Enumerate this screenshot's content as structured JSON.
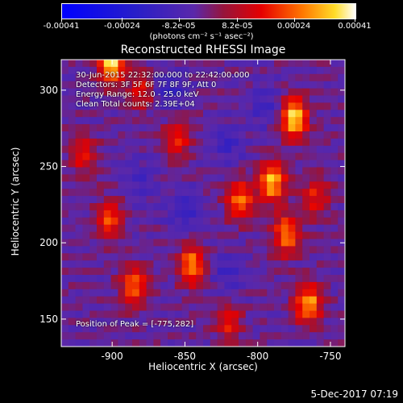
{
  "chart_data": {
    "type": "heatmap",
    "title": "Reconstructed RHESSI Image",
    "xlabel": "Heliocentric X (arcsec)",
    "ylabel": "Heliocentric Y (arcsec)",
    "xlim": [
      -935,
      -740
    ],
    "ylim": [
      132,
      320
    ],
    "x_ticks": [
      -900,
      -850,
      -800,
      -750
    ],
    "y_ticks": [
      150,
      200,
      250,
      300
    ],
    "colorbar": {
      "ticks": [
        "-0.00041",
        "-0.00024",
        "-8.2e-05",
        "8.2e-05",
        "0.00024",
        "0.00041"
      ],
      "units": "(photons cm⁻² s⁻¹ asec⁻²)",
      "range": [
        -0.00041,
        0.00041
      ]
    },
    "annotations": [
      "30-Jun-2015 22:32:00.000 to 22:42:00.000",
      "Detectors: 3F 5F 6F 7F 8F 9F, Att 0",
      "Energy Range: 12.0 - 25.0 keV",
      "Clean    Total counts: 2.39E+04"
    ],
    "peak_label": "Position of Peak = [-775,282]",
    "peak_position": [
      -775,
      282
    ],
    "hot_spots": [
      {
        "x": -900,
        "y": 318,
        "value": 0.00041
      },
      {
        "x": -775,
        "y": 282,
        "value": 0.00041
      },
      {
        "x": -790,
        "y": 240,
        "value": 0.00036
      },
      {
        "x": -812,
        "y": 228,
        "value": 0.00028
      },
      {
        "x": -780,
        "y": 205,
        "value": 0.0003
      },
      {
        "x": -765,
        "y": 160,
        "value": 0.00033
      },
      {
        "x": -845,
        "y": 185,
        "value": 0.0003
      },
      {
        "x": -885,
        "y": 172,
        "value": 0.00027
      },
      {
        "x": -902,
        "y": 215,
        "value": 0.00025
      },
      {
        "x": -920,
        "y": 258,
        "value": 0.00018
      },
      {
        "x": -855,
        "y": 268,
        "value": 0.0002
      },
      {
        "x": -880,
        "y": 300,
        "value": 0.00018
      },
      {
        "x": -820,
        "y": 148,
        "value": 0.00018
      },
      {
        "x": -760,
        "y": 230,
        "value": 0.0002
      }
    ],
    "cold_spots": [
      {
        "x": -860,
        "y": 300,
        "value": -0.00012
      },
      {
        "x": -795,
        "y": 290,
        "value": -0.0001
      },
      {
        "x": -820,
        "y": 265,
        "value": -9e-05
      },
      {
        "x": -850,
        "y": 220,
        "value": -0.00011
      },
      {
        "x": -880,
        "y": 240,
        "value": -8e-05
      },
      {
        "x": -820,
        "y": 180,
        "value": -9e-05
      }
    ]
  },
  "footer": {
    "date": "5-Dec-2017 07:19"
  }
}
